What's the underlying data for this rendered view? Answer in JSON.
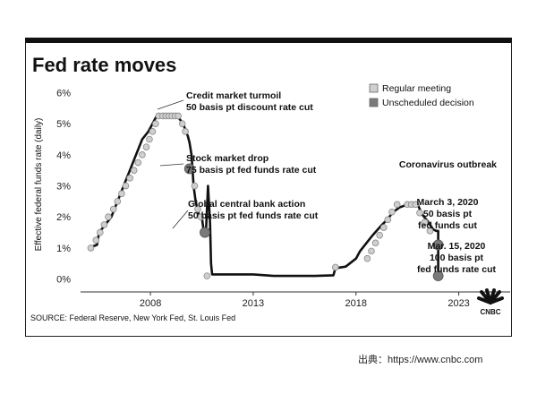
{
  "page": {
    "credit": "出典：https://www.cnbc.com"
  },
  "chart_data": {
    "type": "line",
    "title": "Fed rate moves",
    "ylabel": "Effective federal funds rate (daily)",
    "xlabel": "",
    "source": "SOURCE: Federal Reserve, New York Fed, St. Louis Fed",
    "logo_text": "CNBC",
    "xlim": [
      2004.6,
      2025.5
    ],
    "ylim": [
      -0.3,
      6.1
    ],
    "yticks": [
      0,
      1,
      2,
      3,
      4,
      5,
      6
    ],
    "ytick_labels": [
      "0%",
      "1%",
      "2%",
      "3%",
      "4%",
      "5%",
      "6%"
    ],
    "xticks": [
      2008,
      2013,
      2018,
      2023
    ],
    "xtick_labels": [
      "2008",
      "2013",
      "2018",
      "2023"
    ],
    "legend": [
      {
        "label": "Regular meeting",
        "color": "#cfcfcf"
      },
      {
        "label": "Unscheduled decision",
        "color": "#7a7a7a"
      }
    ],
    "series": [
      {
        "name": "Effective federal funds rate",
        "points": [
          [
            2005.0,
            1.0
          ],
          [
            2005.4,
            1.1
          ],
          [
            2005.5,
            1.5
          ],
          [
            2005.8,
            1.75
          ],
          [
            2006.1,
            2.0
          ],
          [
            2006.4,
            2.5
          ],
          [
            2006.7,
            3.0
          ],
          [
            2007.0,
            3.5
          ],
          [
            2007.3,
            4.0
          ],
          [
            2007.6,
            4.5
          ],
          [
            2007.9,
            4.75
          ],
          [
            2008.1,
            5.0
          ],
          [
            2008.3,
            5.25
          ],
          [
            2008.6,
            5.25
          ],
          [
            2009.1,
            5.25
          ],
          [
            2009.3,
            5.25
          ],
          [
            2009.6,
            5.0
          ],
          [
            2009.72,
            4.75
          ],
          [
            2009.82,
            4.6
          ],
          [
            2009.9,
            4.4
          ],
          [
            2010.0,
            4.0
          ],
          [
            2010.06,
            3.4
          ],
          [
            2010.1,
            3.0
          ],
          [
            2010.2,
            2.5
          ],
          [
            2010.3,
            2.2
          ],
          [
            2010.4,
            2.0
          ],
          [
            2010.5,
            2.0
          ],
          [
            2010.6,
            1.5
          ],
          [
            2010.7,
            1.5
          ],
          [
            2010.8,
            3.0
          ],
          [
            2010.9,
            1.8
          ],
          [
            2010.95,
            0.5
          ],
          [
            2011.0,
            0.15
          ],
          [
            2012.0,
            0.15
          ],
          [
            2013.0,
            0.15
          ],
          [
            2014.0,
            0.1
          ],
          [
            2015.0,
            0.1
          ],
          [
            2016.0,
            0.1
          ],
          [
            2016.9,
            0.12
          ],
          [
            2017.0,
            0.35
          ],
          [
            2017.5,
            0.4
          ],
          [
            2018.0,
            0.66
          ],
          [
            2018.2,
            0.9
          ],
          [
            2018.5,
            1.15
          ],
          [
            2018.8,
            1.4
          ],
          [
            2019.2,
            1.7
          ],
          [
            2019.5,
            1.9
          ],
          [
            2019.8,
            2.15
          ],
          [
            2020.1,
            2.3
          ],
          [
            2020.5,
            2.4
          ],
          [
            2021.0,
            2.4
          ],
          [
            2021.2,
            2.1
          ],
          [
            2021.5,
            1.85
          ],
          [
            2021.75,
            1.6
          ],
          [
            2021.9,
            1.55
          ],
          [
            2022.0,
            1.55
          ],
          [
            2022.0,
            1.1
          ],
          [
            2022.0,
            0.1
          ]
        ]
      }
    ],
    "regular_meetings": [
      [
        2005.1,
        1.0
      ],
      [
        2005.35,
        1.25
      ],
      [
        2005.55,
        1.5
      ],
      [
        2005.75,
        1.75
      ],
      [
        2005.95,
        2.0
      ],
      [
        2006.2,
        2.25
      ],
      [
        2006.4,
        2.5
      ],
      [
        2006.6,
        2.75
      ],
      [
        2006.8,
        3.0
      ],
      [
        2007.0,
        3.25
      ],
      [
        2007.2,
        3.5
      ],
      [
        2007.4,
        3.75
      ],
      [
        2007.6,
        4.0
      ],
      [
        2007.8,
        4.25
      ],
      [
        2007.95,
        4.5
      ],
      [
        2008.1,
        4.75
      ],
      [
        2008.25,
        5.0
      ],
      [
        2008.4,
        5.25
      ],
      [
        2008.6,
        5.25
      ],
      [
        2008.75,
        5.25
      ],
      [
        2008.9,
        5.25
      ],
      [
        2009.05,
        5.25
      ],
      [
        2009.2,
        5.25
      ],
      [
        2009.35,
        5.25
      ],
      [
        2009.55,
        5.0
      ],
      [
        2009.7,
        4.75
      ],
      [
        2010.15,
        3.0
      ],
      [
        2010.3,
        2.25
      ],
      [
        2010.45,
        2.0
      ],
      [
        2010.75,
        0.1
      ],
      [
        2017.0,
        0.38
      ],
      [
        2018.55,
        0.66
      ],
      [
        2018.75,
        0.9
      ],
      [
        2018.95,
        1.16
      ],
      [
        2019.15,
        1.41
      ],
      [
        2019.35,
        1.66
      ],
      [
        2019.55,
        1.91
      ],
      [
        2019.75,
        2.16
      ],
      [
        2020.0,
        2.4
      ],
      [
        2020.5,
        2.4
      ],
      [
        2020.7,
        2.4
      ],
      [
        2020.9,
        2.4
      ],
      [
        2021.1,
        2.13
      ],
      [
        2021.35,
        1.83
      ],
      [
        2021.6,
        1.55
      ]
    ],
    "unscheduled": [
      [
        2009.9,
        3.55
      ],
      [
        2010.65,
        1.5
      ],
      [
        2022.0,
        1.1
      ],
      [
        2022.0,
        0.1
      ]
    ],
    "annotations": [
      {
        "lines": [
          "Credit market turmoil",
          "50 basis pt discount rate cut"
        ]
      },
      {
        "lines": [
          "Stock market drop",
          "75 basis pt fed funds rate cut"
        ]
      },
      {
        "lines": [
          "Global central bank action",
          "50 basis pt fed funds rate cut"
        ]
      },
      {
        "lines": [
          "Coronavirus outbreak"
        ]
      },
      {
        "lines": [
          "March 3, 2020",
          "50 basis pt",
          "fed funds cut"
        ]
      },
      {
        "lines": [
          "Mar. 15, 2020",
          "100 basis pt",
          "fed funds rate cut"
        ]
      }
    ]
  }
}
